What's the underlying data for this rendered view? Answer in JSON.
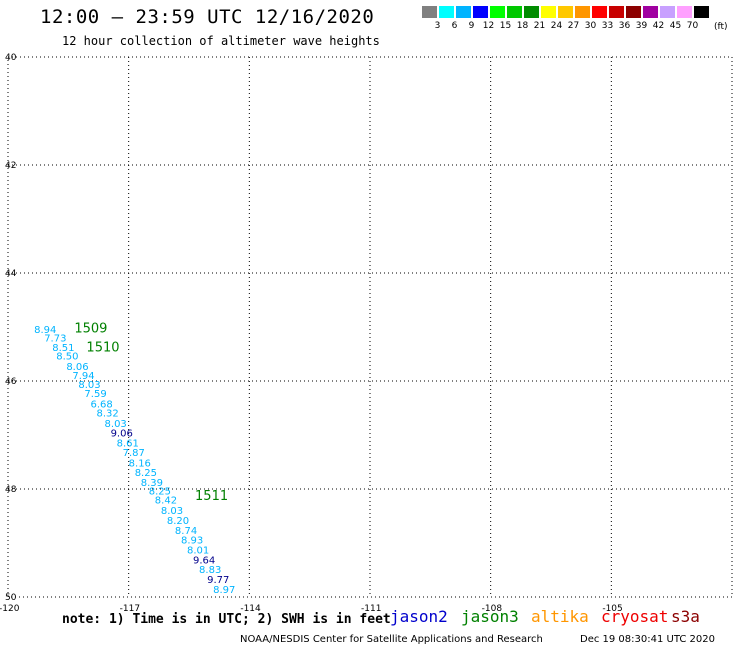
{
  "header": {
    "title": "12:00 – 23:59 UTC 12/16/2020",
    "subtitle": "12 hour collection of altimeter wave heights"
  },
  "legend": {
    "colors": [
      "#808080",
      "#00ffff",
      "#00b4ff",
      "#0000ff",
      "#00ff00",
      "#00c800",
      "#008c00",
      "#ffff00",
      "#ffc800",
      "#ff9600",
      "#ff0000",
      "#c80000",
      "#8c0000",
      "#a000a0",
      "#c8a0ff",
      "#ffa0ff",
      "#000000"
    ],
    "labels": [
      "3",
      "6",
      "9",
      "12",
      "15",
      "18",
      "21",
      "24",
      "27",
      "30",
      "33",
      "36",
      "39",
      "42",
      "45",
      "70"
    ],
    "unit": "(ft)"
  },
  "map": {
    "lon_range": [
      -120,
      -102
    ],
    "lat_range": [
      40,
      50
    ],
    "lat_ticks": [
      "40",
      "42",
      "44",
      "46",
      "48",
      "50"
    ],
    "lon_ticks": [
      "-120",
      "-117",
      "-114",
      "-111",
      "-108",
      "-105"
    ],
    "grid": "dotted"
  },
  "observations": [
    {
      "label": "8.94",
      "lon": -119.35,
      "lat": 45.11,
      "color": "#00b4ff"
    },
    {
      "label": "7.73",
      "lon": -119.1,
      "lat": 45.27,
      "color": "#00b4ff"
    },
    {
      "label": "8.51",
      "lon": -118.9,
      "lat": 45.44,
      "color": "#00b4ff"
    },
    {
      "label": "8.50",
      "lon": -118.8,
      "lat": 45.6,
      "color": "#00b4ff"
    },
    {
      "label": "8.06",
      "lon": -118.55,
      "lat": 45.8,
      "color": "#00b4ff"
    },
    {
      "label": "7.94",
      "lon": -118.4,
      "lat": 45.96,
      "color": "#00b4ff"
    },
    {
      "label": "8.03",
      "lon": -118.25,
      "lat": 46.13,
      "color": "#00b4ff"
    },
    {
      "label": "7.59",
      "lon": -118.1,
      "lat": 46.3,
      "color": "#00b4ff"
    },
    {
      "label": "6.68",
      "lon": -117.95,
      "lat": 46.49,
      "color": "#00b4ff"
    },
    {
      "label": "8.32",
      "lon": -117.8,
      "lat": 46.66,
      "color": "#00b4ff"
    },
    {
      "label": "8.03",
      "lon": -117.6,
      "lat": 46.85,
      "color": "#00b4ff"
    },
    {
      "label": "9.06",
      "lon": -117.45,
      "lat": 47.03,
      "color": "#00008b"
    },
    {
      "label": "8.61",
      "lon": -117.3,
      "lat": 47.21,
      "color": "#00b4ff"
    },
    {
      "label": "7.87",
      "lon": -117.15,
      "lat": 47.39,
      "color": "#00b4ff"
    },
    {
      "label": "8.16",
      "lon": -117.0,
      "lat": 47.58,
      "color": "#00b4ff"
    },
    {
      "label": "8.25",
      "lon": -116.85,
      "lat": 47.76,
      "color": "#00b4ff"
    },
    {
      "label": "8.39",
      "lon": -116.7,
      "lat": 47.94,
      "color": "#00b4ff"
    },
    {
      "label": "8.25",
      "lon": -116.5,
      "lat": 48.1,
      "color": "#00b4ff"
    },
    {
      "label": "8.42",
      "lon": -116.35,
      "lat": 48.27,
      "color": "#00b4ff"
    },
    {
      "label": "8.03",
      "lon": -116.2,
      "lat": 48.46,
      "color": "#00b4ff"
    },
    {
      "label": "8.20",
      "lon": -116.05,
      "lat": 48.65,
      "color": "#00b4ff"
    },
    {
      "label": "8.74",
      "lon": -115.85,
      "lat": 48.83,
      "color": "#00b4ff"
    },
    {
      "label": "8.93",
      "lon": -115.7,
      "lat": 49.01,
      "color": "#00b4ff"
    },
    {
      "label": "8.01",
      "lon": -115.55,
      "lat": 49.19,
      "color": "#00b4ff"
    },
    {
      "label": "9.64",
      "lon": -115.4,
      "lat": 49.38,
      "color": "#00008b"
    },
    {
      "label": "8.83",
      "lon": -115.25,
      "lat": 49.56,
      "color": "#00b4ff"
    },
    {
      "label": "9.77",
      "lon": -115.05,
      "lat": 49.74,
      "color": "#00008b"
    },
    {
      "label": "8.97",
      "lon": -114.9,
      "lat": 49.93,
      "color": "#00b4ff"
    }
  ],
  "time_labels": [
    {
      "label": "1509",
      "lon": -118.35,
      "lat": 45.1,
      "color": "#008000"
    },
    {
      "label": "1510",
      "lon": -118.05,
      "lat": 45.45,
      "color": "#008000"
    },
    {
      "label": "1511",
      "lon": -115.35,
      "lat": 48.2,
      "color": "#008000"
    }
  ],
  "footer": {
    "note": "note: 1) Time is in UTC; 2) SWH is in feet",
    "satellites": [
      {
        "name": "jason2",
        "color": "#0000cc"
      },
      {
        "name": "jason3",
        "color": "#008000"
      },
      {
        "name": "altika",
        "color": "#ff9600"
      },
      {
        "name": "cryosat",
        "color": "#ee0000"
      },
      {
        "name": "s3a",
        "color": "#8c0000"
      }
    ],
    "credit": "NOAA/NESDIS Center for Satellite Applications and Research",
    "timestamp": "Dec 19 08:30:41 UTC 2020"
  }
}
